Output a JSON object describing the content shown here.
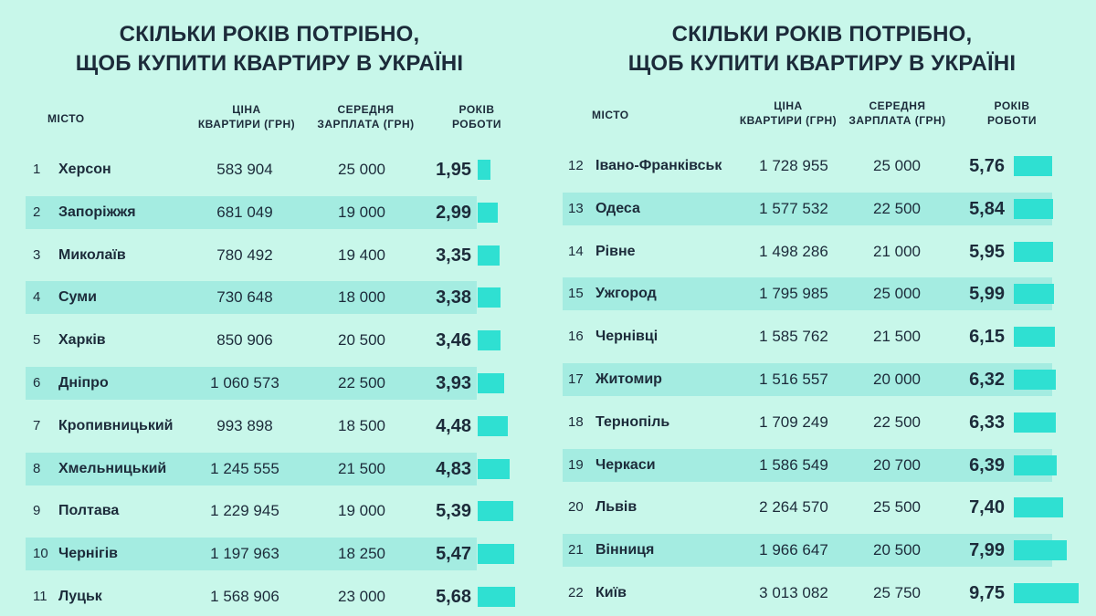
{
  "title_line1": "СКІЛЬКИ РОКІВ ПОТРІБНО,",
  "title_line2": "ЩОБ КУПИТИ КВАРТИРУ В УКРАЇНІ",
  "headers": {
    "city": "МІСТО",
    "price_line1": "ЦІНА",
    "price_line2": "КВАРТИРИ (ГРН)",
    "salary_line1": "СЕРЕДНЯ",
    "salary_line2": "ЗАРПЛАТА (ГРН)",
    "years_line1": "РОКІВ",
    "years_line2": "РОБОТИ"
  },
  "colors": {
    "background": "#c8f7ea",
    "row_shade": "#a4ece1",
    "bar": "#2fe0d2",
    "text": "#1c2b3a"
  },
  "chart_data": {
    "type": "table",
    "title": "СКІЛЬКИ РОКІВ ПОТРІБНО, ЩОБ КУПИТИ КВАРТИРУ В УКРАЇНІ",
    "columns": [
      "МІСТО",
      "ЦІНА КВАРТИРИ (ГРН)",
      "СЕРЕДНЯ ЗАРПЛАТА (ГРН)",
      "РОКІВ РОБОТИ"
    ],
    "rows_left": [
      {
        "n": "1",
        "city": "Херсон",
        "price": "583 904",
        "salary": "25 000",
        "years": "1,95",
        "years_value": 1.95
      },
      {
        "n": "2",
        "city": "Запоріжжя",
        "price": "681 049",
        "salary": "19 000",
        "years": "2,99",
        "years_value": 2.99
      },
      {
        "n": "3",
        "city": "Миколаїв",
        "price": "780 492",
        "salary": "19 400",
        "years": "3,35",
        "years_value": 3.35
      },
      {
        "n": "4",
        "city": "Суми",
        "price": "730 648",
        "salary": "18 000",
        "years": "3,38",
        "years_value": 3.38
      },
      {
        "n": "5",
        "city": "Харків",
        "price": "850 906",
        "salary": "20 500",
        "years": "3,46",
        "years_value": 3.46
      },
      {
        "n": "6",
        "city": "Дніпро",
        "price": "1 060 573",
        "salary": "22 500",
        "years": "3,93",
        "years_value": 3.93
      },
      {
        "n": "7",
        "city": "Кропивницький",
        "price": "993 898",
        "salary": "18 500",
        "years": "4,48",
        "years_value": 4.48
      },
      {
        "n": "8",
        "city": "Хмельницький",
        "price": "1 245 555",
        "salary": "21 500",
        "years": "4,83",
        "years_value": 4.83
      },
      {
        "n": "9",
        "city": "Полтава",
        "price": "1 229 945",
        "salary": "19 000",
        "years": "5,39",
        "years_value": 5.39
      },
      {
        "n": "10",
        "city": "Чернігів",
        "price": "1 197 963",
        "salary": "18 250",
        "years": "5,47",
        "years_value": 5.47
      },
      {
        "n": "11",
        "city": "Луцьк",
        "price": "1 568 906",
        "salary": "23 000",
        "years": "5,68",
        "years_value": 5.68
      }
    ],
    "rows_right": [
      {
        "n": "12",
        "city": "Івано-Франківськ",
        "price": "1 728 955",
        "salary": "25 000",
        "years": "5,76",
        "years_value": 5.76
      },
      {
        "n": "13",
        "city": "Одеса",
        "price": "1 577 532",
        "salary": "22 500",
        "years": "5,84",
        "years_value": 5.84
      },
      {
        "n": "14",
        "city": "Рівне",
        "price": "1 498 286",
        "salary": "21 000",
        "years": "5,95",
        "years_value": 5.95
      },
      {
        "n": "15",
        "city": "Ужгород",
        "price": "1 795 985",
        "salary": "25 000",
        "years": "5,99",
        "years_value": 5.99
      },
      {
        "n": "16",
        "city": "Чернівці",
        "price": "1 585 762",
        "salary": "21 500",
        "years": "6,15",
        "years_value": 6.15
      },
      {
        "n": "17",
        "city": "Житомир",
        "price": "1 516 557",
        "salary": "20 000",
        "years": "6,32",
        "years_value": 6.32
      },
      {
        "n": "18",
        "city": "Тернопіль",
        "price": "1 709 249",
        "salary": "22 500",
        "years": "6,33",
        "years_value": 6.33
      },
      {
        "n": "19",
        "city": "Черкаси",
        "price": "1 586 549",
        "salary": "20 700",
        "years": "6,39",
        "years_value": 6.39
      },
      {
        "n": "20",
        "city": "Львів",
        "price": "2 264 570",
        "salary": "25 500",
        "years": "7,40",
        "years_value": 7.4
      },
      {
        "n": "21",
        "city": "Вінниця",
        "price": "1 966 647",
        "salary": "20 500",
        "years": "7,99",
        "years_value": 7.99
      },
      {
        "n": "22",
        "city": "Київ",
        "price": "3 013 082",
        "salary": "25 750",
        "years": "9,75",
        "years_value": 9.75
      }
    ]
  }
}
